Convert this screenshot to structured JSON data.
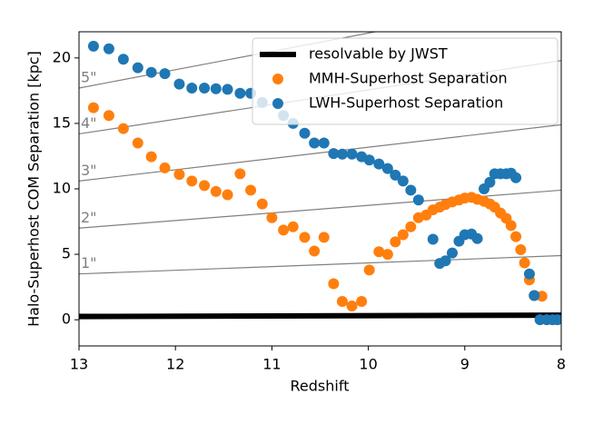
{
  "chart_data": {
    "type": "scatter",
    "xlabel": "Redshift",
    "ylabel": "Halo-Superhost COM Separation [kpc]",
    "xlim": [
      13,
      8
    ],
    "xticks": [
      13,
      12,
      11,
      10,
      9,
      8
    ],
    "ylim": [
      -2,
      22
    ],
    "yticks": [
      0,
      5,
      10,
      15,
      20
    ],
    "legend": "upper right",
    "reference_lines": [
      {
        "label": "1\"",
        "color": "#808080",
        "x": [
          13,
          8
        ],
        "values": [
          3.5,
          4.9
        ]
      },
      {
        "label": "2\"",
        "color": "#808080",
        "x": [
          13,
          8
        ],
        "values": [
          7.0,
          9.9
        ]
      },
      {
        "label": "3\"",
        "color": "#808080",
        "x": [
          13,
          8
        ],
        "values": [
          10.6,
          14.9
        ]
      },
      {
        "label": "4\"",
        "color": "#808080",
        "x": [
          13,
          8
        ],
        "values": [
          14.2,
          19.8
        ]
      },
      {
        "label": "5\"",
        "color": "#808080",
        "x": [
          13,
          8
        ],
        "values": [
          17.7,
          24.7
        ]
      }
    ],
    "series": [
      {
        "name": "resolvable by JWST",
        "color": "#000000",
        "style": "line",
        "x": [
          13,
          8
        ],
        "values": [
          0.25,
          0.35
        ]
      },
      {
        "name": "MMH-Superhost Separation",
        "color": "#ff7f0e",
        "style": "scatter",
        "x": [
          12.85,
          12.69,
          12.54,
          12.39,
          12.25,
          12.11,
          11.96,
          11.83,
          11.7,
          11.58,
          11.46,
          11.33,
          11.22,
          11.1,
          11.0,
          10.88,
          10.78,
          10.66,
          10.56,
          10.46,
          10.36,
          10.27,
          10.17,
          10.07,
          9.99,
          9.89,
          9.8,
          9.72,
          9.64,
          9.56,
          9.48,
          9.4,
          9.33,
          9.26,
          9.2,
          9.13,
          9.06,
          9.0,
          8.93,
          8.87,
          8.8,
          8.74,
          8.69,
          8.63,
          8.57,
          8.52,
          8.47,
          8.42,
          8.38,
          8.33,
          8.28,
          8.2
        ],
        "values": [
          16.2,
          15.6,
          14.6,
          13.5,
          12.45,
          11.6,
          11.1,
          10.6,
          10.25,
          9.8,
          9.55,
          11.15,
          9.9,
          8.85,
          7.8,
          6.85,
          7.1,
          6.3,
          5.25,
          6.3,
          2.75,
          1.4,
          1.05,
          1.4,
          3.8,
          5.2,
          5.0,
          5.95,
          6.5,
          7.1,
          7.8,
          8.0,
          8.4,
          8.6,
          8.8,
          9.0,
          9.15,
          9.3,
          9.35,
          9.2,
          9.05,
          8.85,
          8.6,
          8.15,
          7.75,
          7.2,
          6.35,
          5.35,
          4.35,
          3.05,
          1.85,
          1.8
        ]
      },
      {
        "name": "LWH-Superhost Separation",
        "color": "#1f77b4",
        "style": "scatter",
        "x": [
          12.85,
          12.69,
          12.54,
          12.39,
          12.25,
          12.11,
          11.96,
          11.83,
          11.7,
          11.58,
          11.46,
          11.33,
          11.22,
          11.1,
          10.88,
          10.78,
          10.66,
          10.56,
          10.46,
          10.36,
          10.27,
          10.17,
          10.07,
          9.99,
          9.89,
          9.8,
          9.72,
          9.64,
          9.56,
          9.48,
          9.33,
          9.26,
          9.2,
          9.13,
          9.06,
          9.0,
          8.93,
          8.87,
          8.8,
          8.74,
          8.69,
          8.63,
          8.57,
          8.52,
          8.47,
          8.33,
          8.28,
          8.22,
          8.15,
          8.09,
          8.04
        ],
        "values": [
          20.9,
          20.7,
          19.9,
          19.25,
          18.9,
          18.8,
          18.0,
          17.7,
          17.7,
          17.65,
          17.6,
          17.3,
          17.3,
          16.6,
          15.6,
          15.0,
          14.25,
          13.5,
          13.5,
          12.7,
          12.65,
          12.65,
          12.45,
          12.2,
          11.9,
          11.55,
          11.05,
          10.6,
          9.9,
          9.15,
          6.15,
          4.3,
          4.5,
          5.1,
          6.0,
          6.5,
          6.55,
          6.2,
          10.0,
          10.5,
          11.15,
          11.15,
          11.15,
          11.2,
          10.85,
          3.5,
          1.85,
          0,
          0,
          0,
          0
        ]
      }
    ]
  }
}
